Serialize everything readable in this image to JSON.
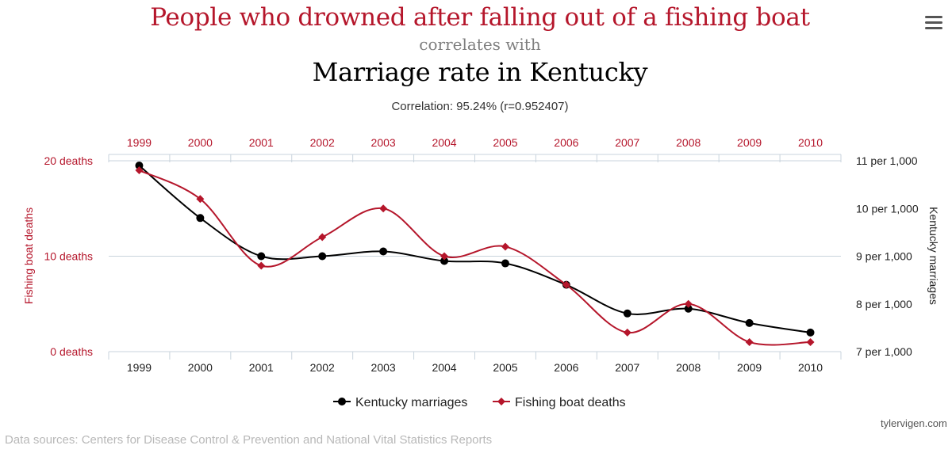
{
  "header": {
    "title_top": "People who drowned after falling out of a fishing boat",
    "title_mid": "correlates with",
    "title_bottom": "Marriage rate in Kentucky",
    "subtitle": "Correlation: 95.24% (r=0.952407)",
    "menu_icon": "hamburger-menu-icon"
  },
  "footer": {
    "credit": "tylervigen.com",
    "sources": "Data sources: Centers for Disease Control & Prevention and National Vital Statistics Reports"
  },
  "colors": {
    "red": "#b5162b",
    "black": "#000000",
    "grid": "#c8d3dc"
  },
  "chart_data": {
    "type": "line",
    "categories": [
      "1999",
      "2000",
      "2001",
      "2002",
      "2003",
      "2004",
      "2005",
      "2006",
      "2007",
      "2008",
      "2009",
      "2010"
    ],
    "left_axis": {
      "title": "Fishing boat deaths",
      "ylim": [
        0,
        20
      ],
      "ticks": [
        0,
        10,
        20
      ],
      "tick_labels": [
        "0 deaths",
        "10 deaths",
        "20 deaths"
      ]
    },
    "right_axis": {
      "title": "Kentucky marriages",
      "ylim": [
        7,
        11
      ],
      "ticks": [
        7,
        8,
        9,
        10,
        11
      ],
      "tick_labels": [
        "7 per 1,000",
        "8 per 1,000",
        "9 per 1,000",
        "10 per 1,000",
        "11 per 1,000"
      ]
    },
    "series": [
      {
        "name": "Kentucky marriages",
        "axis": "right",
        "color": "#000000",
        "marker": "circle",
        "values": [
          10.9,
          9.8,
          9.0,
          9.0,
          9.1,
          8.9,
          8.85,
          8.4,
          7.8,
          7.9,
          7.6,
          7.4
        ]
      },
      {
        "name": "Fishing boat deaths",
        "axis": "left",
        "color": "#b5162b",
        "marker": "diamond",
        "values": [
          19,
          16,
          9,
          12,
          15,
          10,
          11,
          7,
          2,
          5,
          1,
          1
        ]
      }
    ],
    "legend": [
      "Kentucky marriages",
      "Fishing boat deaths"
    ],
    "legend_position": "bottom-center"
  }
}
